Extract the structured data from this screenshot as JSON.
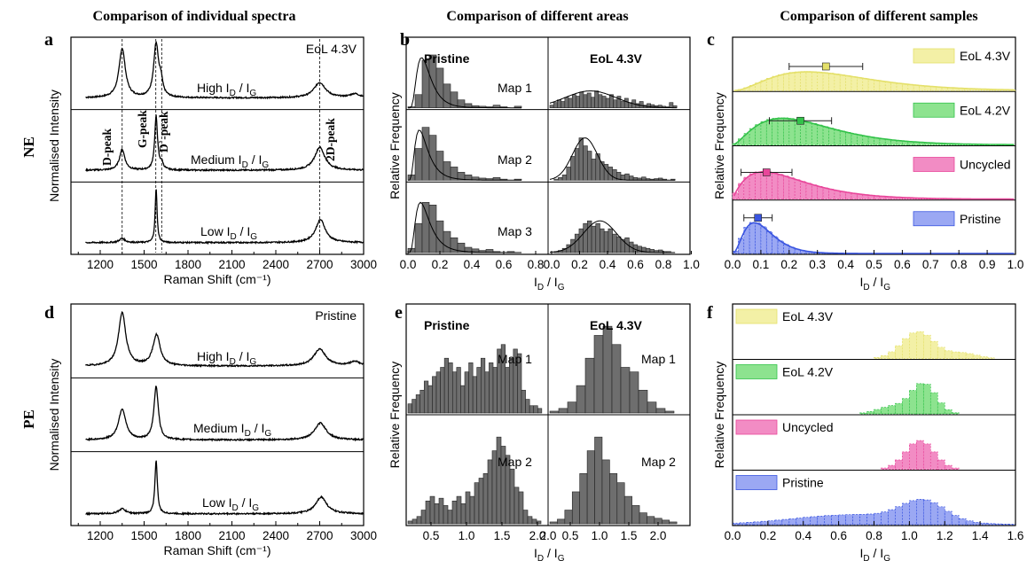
{
  "headers": {
    "a": "Comparison of individual spectra",
    "b": "Comparison of different areas",
    "c": "Comparison of different samples"
  },
  "panel_letters": [
    "a",
    "b",
    "c",
    "d",
    "e",
    "f"
  ],
  "row_labels": {
    "top": "NE",
    "bottom": "PE"
  },
  "chart_data": [
    {
      "panel": "a",
      "type": "line",
      "xlabel": "Raman Shift (cm⁻¹)",
      "ylabel": "Normalised Intensity",
      "xlim": [
        1000,
        3000
      ],
      "xticks": [
        1200,
        1500,
        1800,
        2100,
        2400,
        2700,
        3000
      ],
      "corner_label": "EoL 4.3V",
      "peak_labels": [
        "D-peak",
        "G-peak",
        "D`-peak",
        "2D-peak"
      ],
      "peak_positions": [
        1350,
        1580,
        1620,
        2700
      ],
      "series": [
        {
          "label": "High I_D / I_G",
          "sub_d": "D",
          "sub_g": "G",
          "prefix": "High I",
          "peaks": [
            {
              "x": 1350,
              "h": 0.9,
              "w": 26
            },
            {
              "x": 1582,
              "h": 0.97,
              "w": 20
            },
            {
              "x": 1615,
              "h": 0.25,
              "w": 14
            },
            {
              "x": 2700,
              "h": 0.28,
              "w": 48
            },
            {
              "x": 2940,
              "h": 0.07,
              "w": 40
            }
          ]
        },
        {
          "label": "Medium I_D / I_G",
          "prefix": "Medium I",
          "peaks": [
            {
              "x": 1350,
              "h": 0.38,
              "w": 22
            },
            {
              "x": 1582,
              "h": 0.97,
              "w": 12
            },
            {
              "x": 1620,
              "h": 0.12,
              "w": 12
            },
            {
              "x": 2700,
              "h": 0.42,
              "w": 42
            }
          ]
        },
        {
          "label": "Low I_D / I_G",
          "prefix": "Low I",
          "peaks": [
            {
              "x": 1350,
              "h": 0.08,
              "w": 22
            },
            {
              "x": 1582,
              "h": 0.98,
              "w": 8
            },
            {
              "x": 2705,
              "h": 0.42,
              "w": 40
            }
          ]
        }
      ]
    },
    {
      "panel": "b",
      "type": "bar",
      "xlabel_prefix": "I",
      "ylabel": "Relative Frequency",
      "left_title": "Pristine",
      "right_title": "EoL 4.3V",
      "left_xticks": [
        "0.0",
        "0.2",
        "0.4",
        "0.6",
        "0.8"
      ],
      "right_xticks": [
        "0.0",
        "0.2",
        "0.4",
        "0.6",
        "0.8",
        "1.0"
      ],
      "maps": [
        "Map 1",
        "Map 2",
        "Map 3"
      ],
      "pristine": [
        [
          0.02,
          0.25,
          0.9,
          1.0,
          0.75,
          0.45,
          0.3,
          0.15,
          0.08,
          0.04,
          0.03,
          0.02,
          0.05,
          0.02,
          0.0,
          0.03
        ],
        [
          0.1,
          0.6,
          1.0,
          0.85,
          0.55,
          0.35,
          0.25,
          0.15,
          0.1,
          0.06,
          0.04,
          0.03,
          0.05,
          0.02,
          0.0,
          0.02
        ],
        [
          0.08,
          0.55,
          0.95,
          0.9,
          0.6,
          0.4,
          0.28,
          0.18,
          0.1,
          0.07,
          0.04,
          0.06,
          0.02,
          0.0,
          0.02,
          0.0
        ]
      ],
      "eol": [
        [
          0.05,
          0.1,
          0.15,
          0.12,
          0.2,
          0.18,
          0.25,
          0.22,
          0.3,
          0.25,
          0.28,
          0.2,
          0.32,
          0.25,
          0.22,
          0.18,
          0.25,
          0.15,
          0.22,
          0.12,
          0.18,
          0.1,
          0.15,
          0.08,
          0.12,
          0.05,
          0.08,
          0.06,
          0.04,
          0.05,
          0.03,
          0.02,
          0.1,
          0.04
        ],
        [
          0.0,
          0.02,
          0.05,
          0.1,
          0.25,
          0.45,
          0.6,
          0.8,
          0.65,
          0.55,
          0.4,
          0.5,
          0.35,
          0.3,
          0.25,
          0.2,
          0.15,
          0.1,
          0.12,
          0.08,
          0.05,
          0.04,
          0.06,
          0.03,
          0.02,
          0.03,
          0.04,
          0.02,
          0.0,
          0.02
        ],
        [
          0.0,
          0.02,
          0.04,
          0.08,
          0.15,
          0.25,
          0.35,
          0.45,
          0.55,
          0.6,
          0.5,
          0.55,
          0.45,
          0.4,
          0.45,
          0.35,
          0.3,
          0.25,
          0.28,
          0.2,
          0.15,
          0.12,
          0.1,
          0.08,
          0.06,
          0.04,
          0.05,
          0.02,
          0.02,
          0.0
        ]
      ]
    },
    {
      "panel": "c",
      "type": "bar",
      "xlabel_prefix": "I",
      "ylabel": "Relative Frequency",
      "xlim": [
        0,
        1.0
      ],
      "xticks": [
        "0.0",
        "0.1",
        "0.2",
        "0.3",
        "0.4",
        "0.5",
        "0.6",
        "0.7",
        "0.8",
        "0.9",
        "1.0"
      ],
      "series": [
        {
          "name": "EoL 4.3V",
          "color": "#e4e06a",
          "fill": "#f3f0a6",
          "mean": 0.33,
          "sd": 0.13
        },
        {
          "name": "EoL 4.2V",
          "color": "#33c24a",
          "fill": "#8de38f",
          "mean": 0.24,
          "sd": 0.11
        },
        {
          "name": "Uncycled",
          "color": "#e8469a",
          "fill": "#f28cc4",
          "mean": 0.12,
          "sd": 0.09
        },
        {
          "name": "Pristine",
          "color": "#3a55e0",
          "fill": "#9ba8f3",
          "mean": 0.09,
          "sd": 0.05
        }
      ]
    },
    {
      "panel": "d",
      "type": "line",
      "xlabel": "Raman Shift (cm⁻¹)",
      "ylabel": "Normalised Intensity",
      "xlim": [
        1000,
        3000
      ],
      "xticks": [
        1200,
        1500,
        1800,
        2100,
        2400,
        2700,
        3000
      ],
      "corner_label": "Pristine",
      "series": [
        {
          "prefix": "High I",
          "peaks": [
            {
              "x": 1350,
              "h": 0.95,
              "w": 30
            },
            {
              "x": 1585,
              "h": 0.55,
              "w": 30
            },
            {
              "x": 2700,
              "h": 0.3,
              "w": 50
            },
            {
              "x": 2940,
              "h": 0.08,
              "w": 40
            }
          ]
        },
        {
          "prefix": "Medium I",
          "peaks": [
            {
              "x": 1350,
              "h": 0.55,
              "w": 30
            },
            {
              "x": 1582,
              "h": 0.95,
              "w": 18
            },
            {
              "x": 2705,
              "h": 0.3,
              "w": 48
            }
          ]
        },
        {
          "prefix": "Low I",
          "peaks": [
            {
              "x": 1350,
              "h": 0.09,
              "w": 28
            },
            {
              "x": 1582,
              "h": 0.95,
              "w": 10
            },
            {
              "x": 2710,
              "h": 0.3,
              "w": 45
            }
          ]
        }
      ]
    },
    {
      "panel": "e",
      "type": "bar",
      "xlabel_prefix": "I",
      "ylabel": "Relative Frequency",
      "left_title": "Pristine",
      "right_title": "EoL 4.3V",
      "left_xticks": [
        "0.5",
        "1.0",
        "1.5",
        "2.0"
      ],
      "right_xticks": [
        "2.0",
        "0.5",
        "1.0",
        "1.5",
        "2.0"
      ],
      "maps": [
        "Map 1",
        "Map 2"
      ],
      "pristine": [
        [
          0.1,
          0.15,
          0.2,
          0.25,
          0.35,
          0.3,
          0.4,
          0.45,
          0.5,
          0.6,
          0.55,
          0.45,
          0.5,
          0.3,
          0.45,
          0.55,
          0.4,
          0.5,
          0.6,
          0.45,
          0.55,
          0.5,
          0.7,
          0.75,
          0.5,
          0.6,
          0.7,
          0.65,
          0.25,
          0.15,
          0.08,
          0.08,
          0.05
        ],
        [
          0.03,
          0.05,
          0.08,
          0.15,
          0.25,
          0.3,
          0.22,
          0.28,
          0.2,
          0.15,
          0.25,
          0.3,
          0.22,
          0.35,
          0.3,
          0.45,
          0.5,
          0.55,
          0.7,
          0.8,
          0.95,
          0.85,
          0.75,
          0.6,
          0.4,
          0.35,
          0.15,
          0.08,
          0.05,
          0.03
        ]
      ],
      "eol": [
        [
          0.02,
          0.05,
          0.12,
          0.3,
          0.6,
          0.85,
          0.95,
          0.75,
          0.5,
          0.45,
          0.25,
          0.12,
          0.05,
          0.02
        ],
        [
          0.02,
          0.05,
          0.15,
          0.35,
          0.55,
          0.8,
          0.95,
          0.7,
          0.55,
          0.45,
          0.3,
          0.2,
          0.12,
          0.08,
          0.06,
          0.04,
          0.02
        ]
      ]
    },
    {
      "panel": "f",
      "type": "bar",
      "xlabel_prefix": "I",
      "ylabel": "Relative Frequency",
      "xlim": [
        0,
        1.6
      ],
      "xticks": [
        "0.0",
        "0.2",
        "0.4",
        "0.6",
        "0.8",
        "1.0",
        "1.2",
        "1.4",
        "1.6"
      ],
      "series": [
        {
          "name": "EoL 4.3V",
          "color": "#e4e06a",
          "fill": "#f3f0a6"
        },
        {
          "name": "EoL 4.2V",
          "color": "#33c24a",
          "fill": "#8de38f"
        },
        {
          "name": "Uncycled",
          "color": "#e8469a",
          "fill": "#f28cc4"
        },
        {
          "name": "Pristine",
          "color": "#3a55e0",
          "fill": "#9ba8f3"
        }
      ]
    }
  ]
}
